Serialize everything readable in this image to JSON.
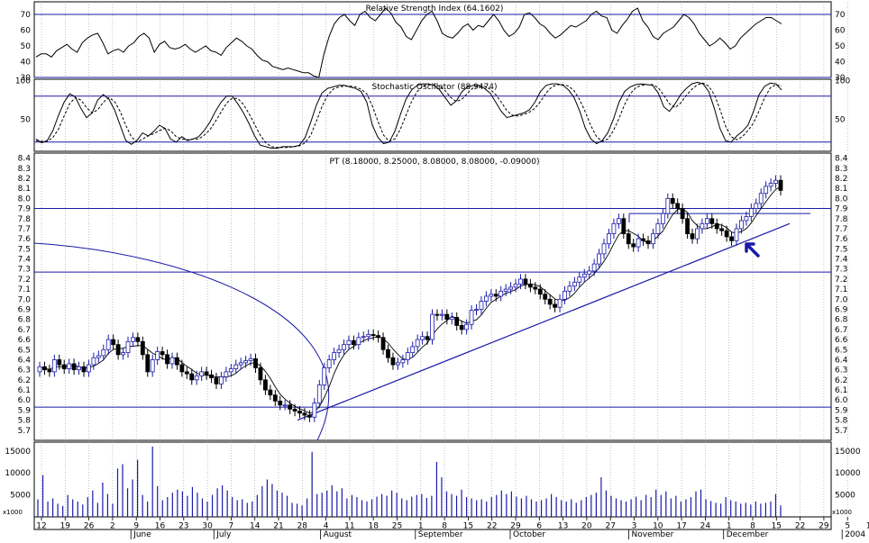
{
  "chart_data": [
    {
      "panel": "rsi",
      "type": "line",
      "title": "Relative Strength Index (64.1602)",
      "ylim": [
        30,
        78
      ],
      "yticks": [
        30,
        40,
        50,
        60,
        70
      ],
      "levels": [
        70,
        30
      ],
      "grid": "vertical-dotted",
      "values": [
        43,
        45,
        45,
        43,
        47,
        49,
        51,
        48,
        46,
        52,
        55,
        57,
        58,
        52,
        45,
        47,
        48,
        46,
        50,
        52,
        56,
        58,
        55,
        46,
        51,
        53,
        49,
        48,
        49,
        51,
        48,
        46,
        48,
        50,
        47,
        46,
        44,
        49,
        52,
        55,
        53,
        50,
        48,
        44,
        41,
        40,
        37,
        36,
        35,
        36,
        35,
        34,
        33,
        33,
        31,
        30,
        45,
        56,
        64,
        68,
        70,
        66,
        63,
        70,
        72,
        68,
        66,
        70,
        74,
        71,
        65,
        62,
        56,
        54,
        60,
        66,
        70,
        72,
        66,
        58,
        56,
        55,
        58,
        62,
        64,
        60,
        63,
        62,
        66,
        70,
        66,
        60,
        56,
        58,
        62,
        70,
        71,
        68,
        64,
        62,
        58,
        55,
        57,
        60,
        63,
        62,
        64,
        66,
        70,
        72,
        69,
        68,
        60,
        58,
        63,
        67,
        72,
        74,
        66,
        62,
        56,
        54,
        58,
        60,
        62,
        66,
        70,
        68,
        64,
        58,
        54,
        50,
        52,
        55,
        52,
        48,
        50,
        55,
        58,
        61,
        64,
        66,
        68,
        68,
        66,
        64
      ]
    },
    {
      "panel": "stochastic",
      "type": "line",
      "title": "Stochastic Oscillator (88.9474)",
      "ylim": [
        8,
        102
      ],
      "yticks": [
        50,
        100
      ],
      "levels": [
        80,
        20
      ],
      "series": [
        {
          "name": "%K",
          "style": "solid",
          "values": [
            24,
            19,
            22,
            35,
            55,
            72,
            83,
            79,
            64,
            52,
            58,
            75,
            82,
            76,
            62,
            42,
            22,
            17,
            22,
            32,
            28,
            34,
            42,
            38,
            24,
            20,
            27,
            22,
            24,
            27,
            35,
            46,
            60,
            72,
            80,
            80,
            70,
            58,
            44,
            28,
            16,
            14,
            12,
            12,
            14,
            14,
            14,
            16,
            26,
            46,
            68,
            84,
            90,
            92,
            94,
            94,
            92,
            90,
            86,
            72,
            42,
            26,
            18,
            20,
            34,
            56,
            76,
            88,
            94,
            96,
            96,
            94,
            88,
            78,
            68,
            74,
            86,
            92,
            94,
            94,
            90,
            84,
            72,
            60,
            52,
            54,
            56,
            58,
            62,
            72,
            86,
            94,
            96,
            96,
            94,
            88,
            78,
            60,
            38,
            24,
            18,
            22,
            32,
            50,
            72,
            86,
            92,
            95,
            96,
            95,
            94,
            84,
            66,
            60,
            70,
            82,
            90,
            96,
            98,
            96,
            86,
            64,
            38,
            22,
            20,
            28,
            34,
            42,
            60,
            82,
            93,
            97,
            96,
            88
          ]
        },
        {
          "name": "%D",
          "style": "dashed",
          "values": [
            22,
            21,
            21,
            26,
            37,
            54,
            70,
            78,
            75,
            65,
            58,
            62,
            72,
            78,
            73,
            60,
            42,
            27,
            20,
            24,
            28,
            31,
            35,
            38,
            35,
            27,
            24,
            23,
            24,
            24,
            29,
            36,
            47,
            59,
            71,
            77,
            77,
            69,
            57,
            43,
            29,
            19,
            14,
            13,
            13,
            13,
            14,
            15,
            19,
            29,
            47,
            66,
            81,
            89,
            92,
            93,
            93,
            92,
            89,
            83,
            67,
            47,
            29,
            21,
            24,
            37,
            55,
            73,
            86,
            93,
            95,
            95,
            93,
            87,
            78,
            73,
            76,
            84,
            91,
            93,
            93,
            89,
            82,
            72,
            61,
            55,
            54,
            56,
            59,
            64,
            73,
            84,
            92,
            95,
            95,
            93,
            87,
            75,
            59,
            41,
            27,
            21,
            24,
            35,
            51,
            69,
            83,
            91,
            94,
            95,
            95,
            91,
            81,
            70,
            65,
            71,
            81,
            89,
            95,
            97,
            93,
            82,
            63,
            41,
            27,
            23,
            27,
            35,
            45,
            61,
            78,
            91,
            95,
            93
          ]
        }
      ]
    },
    {
      "panel": "price",
      "type": "candlestick",
      "title": "PT (8.18000, 8.25000, 8.08000, 8.08000, -0.09000)",
      "ylim": [
        5.6,
        8.45
      ],
      "yticks": [
        5.7,
        5.8,
        5.9,
        6.0,
        6.1,
        6.2,
        6.3,
        6.4,
        6.5,
        6.6,
        6.7,
        6.8,
        6.9,
        7.0,
        7.1,
        7.2,
        7.3,
        7.4,
        7.5,
        7.6,
        7.7,
        7.8,
        7.9,
        8.0,
        8.1,
        8.2,
        8.3,
        8.4
      ],
      "closes": [
        6.33,
        6.3,
        6.28,
        6.4,
        6.35,
        6.31,
        6.36,
        6.3,
        6.33,
        6.28,
        6.35,
        6.42,
        6.44,
        6.5,
        6.6,
        6.55,
        6.45,
        6.47,
        6.58,
        6.62,
        6.58,
        6.45,
        6.28,
        6.4,
        6.48,
        6.45,
        6.36,
        6.42,
        6.35,
        6.28,
        6.26,
        6.2,
        6.24,
        6.28,
        6.25,
        6.22,
        6.16,
        6.23,
        6.28,
        6.31,
        6.35,
        6.37,
        6.39,
        6.41,
        6.32,
        6.2,
        6.1,
        6.05,
        5.99,
        5.95,
        5.95,
        5.91,
        5.89,
        5.87,
        5.85,
        5.83,
        5.97,
        6.15,
        6.32,
        6.4,
        6.47,
        6.5,
        6.55,
        6.59,
        6.55,
        6.62,
        6.63,
        6.65,
        6.64,
        6.62,
        6.5,
        6.42,
        6.35,
        6.37,
        6.4,
        6.47,
        6.53,
        6.6,
        6.63,
        6.6,
        6.85,
        6.84,
        6.85,
        6.8,
        6.82,
        6.74,
        6.7,
        6.75,
        6.89,
        6.9,
        6.98,
        7.03,
        7.05,
        7.03,
        7.08,
        7.1,
        7.12,
        7.15,
        7.2,
        7.15,
        7.12,
        7.1,
        7.05,
        7.0,
        6.95,
        6.92,
        7.0,
        7.08,
        7.13,
        7.17,
        7.22,
        7.25,
        7.28,
        7.35,
        7.45,
        7.55,
        7.65,
        7.75,
        7.8,
        7.65,
        7.55,
        7.52,
        7.6,
        7.58,
        7.55,
        7.65,
        7.75,
        7.85,
        8.0,
        7.95,
        7.9,
        7.8,
        7.65,
        7.6,
        7.7,
        7.75,
        7.8,
        7.75,
        7.7,
        7.68,
        7.62,
        7.58,
        7.7,
        7.78,
        7.82,
        7.9,
        7.95,
        8.05,
        8.12,
        8.15,
        8.18,
        8.08
      ],
      "indicators": {
        "moving_average": "solid thin line",
        "horizontal_levels": [
          7.9,
          7.27,
          5.93
        ],
        "resistance_segment": {
          "from": "Nov 17",
          "to": "2004",
          "level": 7.85
        },
        "trendline": {
          "from_value": 5.8,
          "to_value": 7.75
        },
        "arc": "large semicircle from left edge crossing Aug 11",
        "arrow_annotation": "blue arrow pointing up-left near Dec 22"
      }
    },
    {
      "panel": "volume",
      "type": "bar",
      "title": "x1000",
      "ylim": [
        0,
        17000
      ],
      "yticks": [
        5000,
        10000,
        15000
      ],
      "values": [
        4000,
        9500,
        3500,
        4200,
        3000,
        2500,
        5000,
        4000,
        3500,
        2800,
        4500,
        6000,
        3200,
        7800,
        5200,
        3000,
        11000,
        12000,
        6500,
        8500,
        13000,
        5000,
        3500,
        16000,
        7000,
        3800,
        4500,
        5500,
        6200,
        5800,
        4800,
        6800,
        5500,
        4200,
        3500,
        5000,
        6500,
        7200,
        6000,
        4500,
        3800,
        4000,
        3200,
        3500,
        5000,
        7000,
        8500,
        7500,
        6000,
        5500,
        4800,
        3200,
        3000,
        2600,
        4200,
        14800,
        5200,
        5500,
        6000,
        7200,
        5800,
        6500,
        4200,
        5000,
        4500,
        3800,
        3500,
        4000,
        4600,
        5200,
        4800,
        6000,
        5500,
        4200,
        3800,
        4600,
        5000,
        5200,
        4300,
        4800,
        12500,
        9000,
        5800,
        5200,
        4800,
        6200,
        4500,
        4200,
        3800,
        4000,
        3500,
        4500,
        5000,
        6000,
        5200,
        5800,
        4600,
        4200,
        4800,
        4000,
        3500,
        3800,
        4200,
        5200,
        4500,
        3800,
        3500,
        4000,
        3200,
        3800,
        4500,
        5000,
        5500,
        9000,
        6000,
        4800,
        4200,
        3800,
        3500,
        4000,
        4600,
        3800,
        5000,
        4500,
        6200,
        5000,
        5800,
        4200,
        4800,
        3500,
        4000,
        4500,
        5800,
        6200,
        4000,
        3600,
        3200,
        3000,
        4500,
        3800,
        3500,
        3000,
        3200,
        2800,
        3500,
        3000,
        3200,
        3500,
        5200,
        2600
      ]
    },
    {
      "panel": "time_axis",
      "type": "axis",
      "day_ticks": [
        "12",
        "19",
        "26",
        "2",
        "9",
        "16",
        "23",
        "30",
        "7",
        "14",
        "21",
        "28",
        "4",
        "11",
        "18",
        "25",
        "1",
        "8",
        "15",
        "22",
        "29",
        "6",
        "13",
        "20",
        "27",
        "3",
        "10",
        "17",
        "24",
        "1",
        "8",
        "15",
        "22",
        "29",
        "5",
        "12",
        "19"
      ],
      "months": [
        "June",
        "July",
        "August",
        "September",
        "October",
        "November",
        "December",
        "2004"
      ]
    }
  ]
}
